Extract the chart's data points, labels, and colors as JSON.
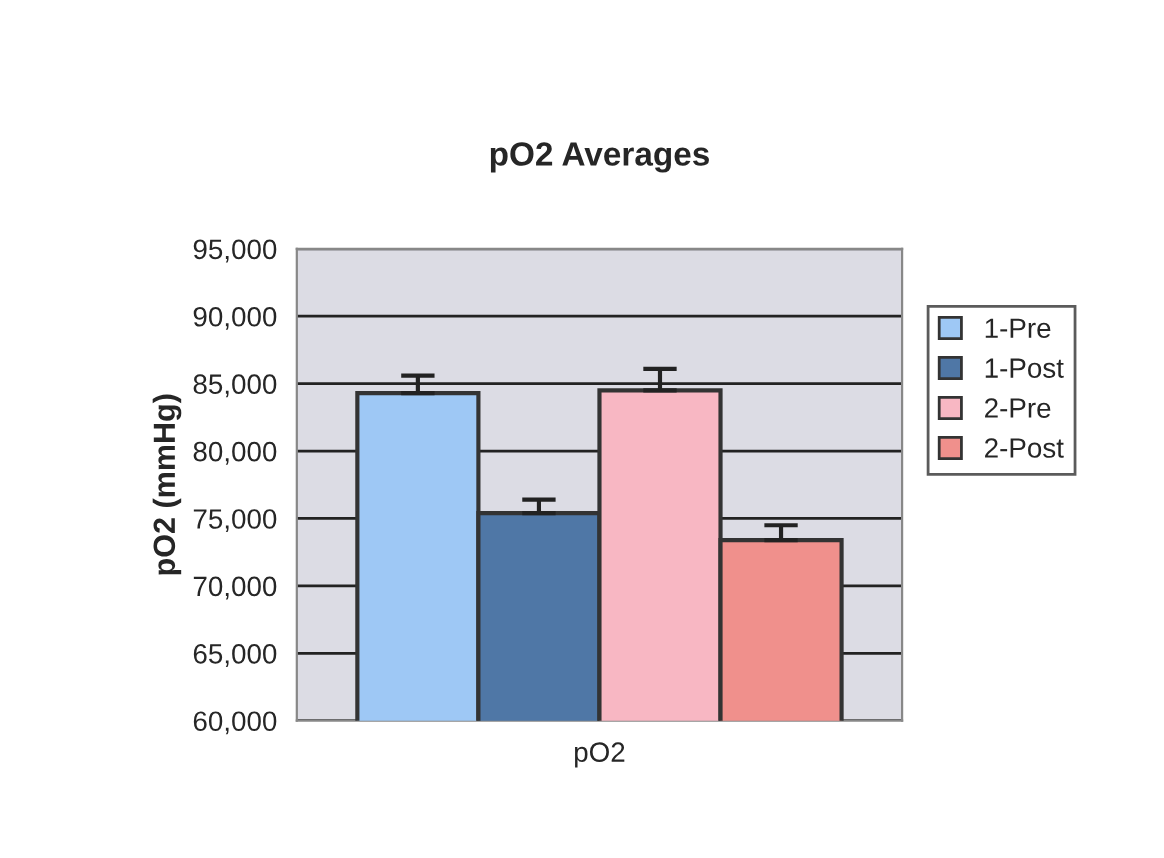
{
  "chart_data": {
    "type": "bar",
    "title": "pO2 Averages",
    "xlabel": "pO2",
    "ylabel": "pO2 (mmHg)",
    "categories": [
      null
    ],
    "series": [
      {
        "name": "1-Pre",
        "color": "#9ec8f5",
        "values": [
          84300
        ],
        "errors": [
          [
            84300,
            85600
          ]
        ]
      },
      {
        "name": "1-Post",
        "color": "#4f77a6",
        "values": [
          75400
        ],
        "errors": [
          [
            75400,
            76400
          ]
        ]
      },
      {
        "name": "2-Pre",
        "color": "#f8b7c3",
        "values": [
          84500
        ],
        "errors": [
          [
            84500,
            86100
          ]
        ]
      },
      {
        "name": "2-Post",
        "color": "#f0908c",
        "values": [
          73400
        ],
        "errors": [
          [
            73400,
            74500
          ]
        ]
      }
    ],
    "ylim": [
      60000,
      95000
    ],
    "yticks": [
      {
        "value": 60000,
        "label": "60,000"
      },
      {
        "value": 65000,
        "label": "65,000"
      },
      {
        "value": 70000,
        "label": "70,000"
      },
      {
        "value": 75000,
        "label": "75,000"
      },
      {
        "value": 80000,
        "label": "80,000"
      },
      {
        "value": 85000,
        "label": "85,000"
      },
      {
        "value": 90000,
        "label": "90,000"
      },
      {
        "value": 95000,
        "label": "95,000"
      }
    ],
    "grid": "y",
    "legend": "right"
  }
}
